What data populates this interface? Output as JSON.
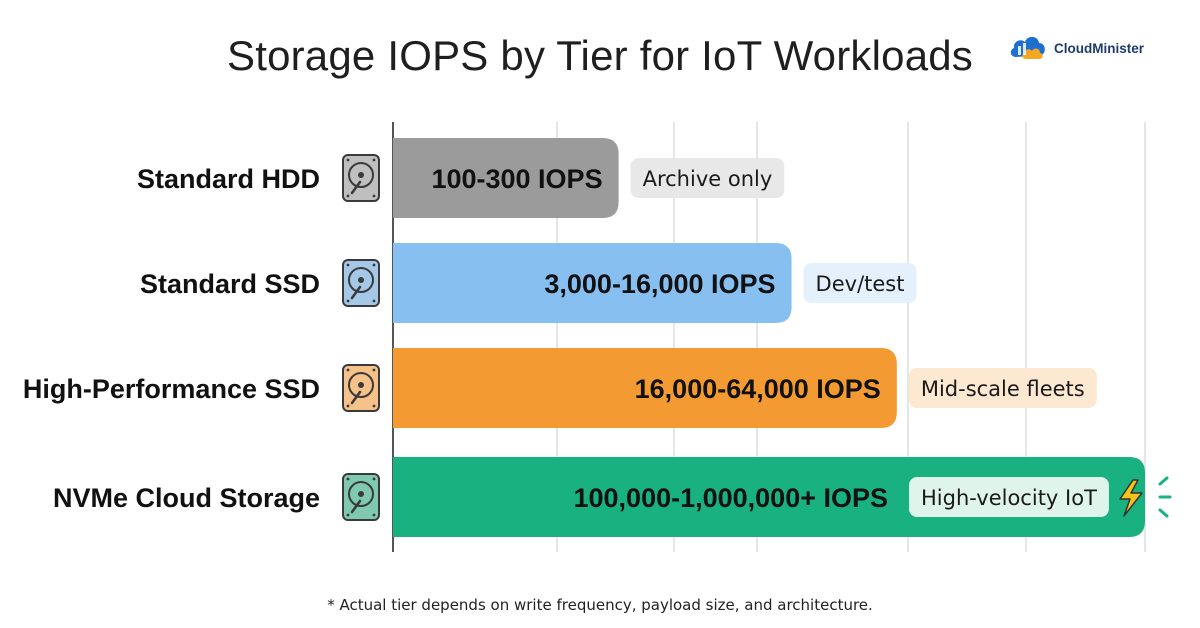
{
  "title": "Storage IOPS by Tier for IoT Workloads",
  "brand": {
    "name": "CloudMinister",
    "icon": "cloud-icon",
    "colors": [
      "#1f6fd1",
      "#f5a623"
    ]
  },
  "footnote": "* Actual tier depends on write frequency, payload size, and architecture.",
  "chart_data": {
    "type": "bar",
    "orientation": "horizontal",
    "title": "Storage IOPS by Tier for IoT Workloads",
    "xlabel": "",
    "ylabel": "",
    "grid": true,
    "categories": [
      "Standard HDD",
      "Standard SSD",
      "High-Performance SSD",
      "NVMe Cloud Storage"
    ],
    "series": [
      {
        "value_labels": [
          "100-300 IOPS",
          "3,000-16,000 IOPS",
          "16,000-64,000 IOPS",
          "100,000-1,000,000+ IOPS"
        ],
        "relative_length": [
          0.3,
          0.53,
          0.67,
          1.0
        ],
        "colors": [
          "#9b9b9b",
          "#86bff0",
          "#f39a33",
          "#19b17f"
        ]
      }
    ],
    "notes": [
      "Archive only",
      "Dev/test",
      "Mid-scale fleets",
      "High-velocity IoT"
    ],
    "note_colors": [
      "#e8e8e8",
      "#e4f0fb",
      "#fde8d2",
      "#dff5ec"
    ],
    "icon_names": [
      "hard-drive-icon",
      "hard-drive-icon",
      "hard-drive-icon",
      "hard-drive-icon"
    ],
    "icon_colors": [
      "#8a8a8a",
      "#5b9bd5",
      "#ef8f2a",
      "#159c6f"
    ],
    "accent_icon": "lightning-bolt-icon",
    "accent_color": "#f4c21a"
  }
}
